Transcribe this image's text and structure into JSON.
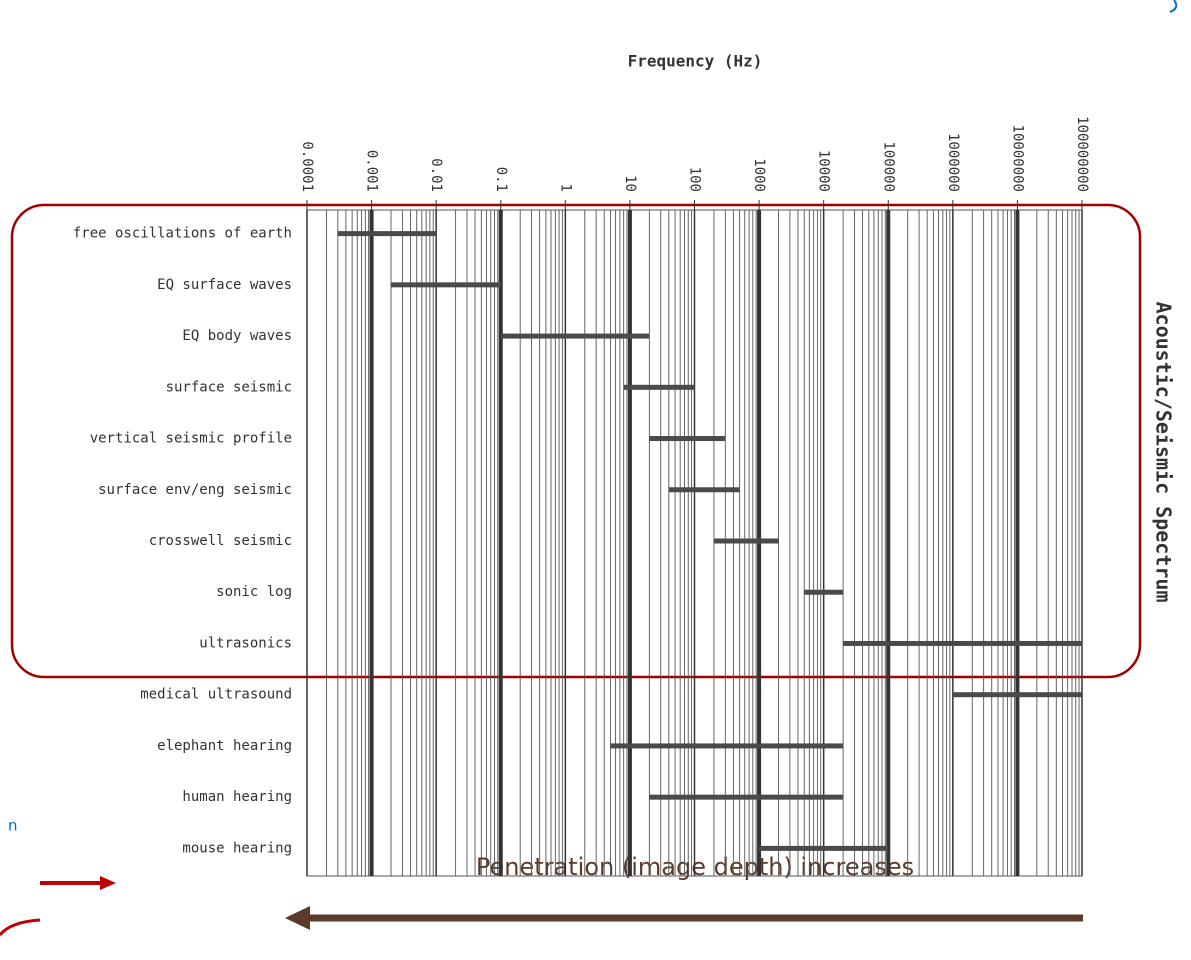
{
  "chart_data": {
    "type": "range_bar",
    "title": "Frequency (Hz)",
    "side_title": "Acoustic/Seismic Spectrum",
    "annotation": "Penetration (image depth) increases",
    "fragment": "n",
    "xscale": "log",
    "grid": true,
    "minor_grid": true,
    "color": "#4a4a4a",
    "xlim": [
      0.0001,
      100000000
    ],
    "xticks": [
      0.0001,
      0.001,
      0.01,
      0.1,
      1,
      10,
      100,
      1000,
      10000,
      100000,
      1000000,
      10000000,
      100000000
    ],
    "categories": [
      "free oscillations of earth",
      "EQ surface waves",
      "EQ body waves",
      "surface seismic",
      "vertical seismic profile",
      "surface env/eng seismic",
      "crosswell seismic",
      "sonic log",
      "ultrasonics",
      "medical ultrasound",
      "elephant hearing",
      "human hearing",
      "mouse hearing"
    ],
    "low": [
      0.0003,
      0.002,
      0.1,
      8,
      20,
      40,
      200,
      5000,
      20000,
      1000000,
      5,
      20,
      1000
    ],
    "high": [
      0.01,
      0.1,
      20,
      100,
      300,
      500,
      2000,
      20000,
      100000000,
      100000000,
      20000,
      20000,
      100000
    ]
  }
}
